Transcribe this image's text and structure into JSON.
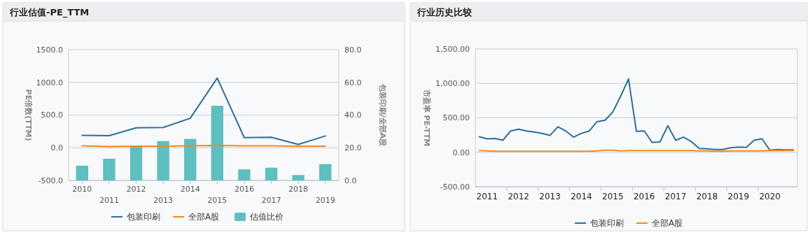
{
  "chart_data": [
    {
      "type": "line",
      "title": "行业估值-PE_TTM",
      "ylabel": "PE倍数(TTM)",
      "y2label": "包装印刷/全部A股",
      "categories": [
        "2010",
        "2011",
        "2012",
        "2013",
        "2014",
        "2015",
        "2016",
        "2017",
        "2018",
        "2019"
      ],
      "series": [
        {
          "name": "包装印刷",
          "color": "#2b6f9a",
          "values": [
            190,
            185,
            305,
            310,
            450,
            1065,
            155,
            160,
            50,
            180
          ]
        },
        {
          "name": "全部A股",
          "color": "#f58a1f",
          "values": [
            30,
            20,
            25,
            25,
            30,
            35,
            30,
            30,
            25,
            25
          ]
        },
        {
          "name": "估值比价",
          "type": "bar",
          "axis": "y2",
          "color": "#5dbfbf",
          "values": [
            9.0,
            13.3,
            21.0,
            24.1,
            25.4,
            45.7,
            6.8,
            7.8,
            3.3,
            10.0
          ]
        }
      ],
      "ylim": [
        -500,
        1500
      ],
      "yticks": [
        {
          "value": -500,
          "label": "-500.0"
        },
        {
          "value": 0,
          "label": "0.0"
        },
        {
          "value": 500,
          "label": "500.0"
        },
        {
          "value": 1000,
          "label": "1000.0"
        },
        {
          "value": 1500,
          "label": "1500.0"
        }
      ],
      "y2lim": [
        0,
        80
      ],
      "y2ticks": [
        {
          "value": 0,
          "label": "0.0"
        },
        {
          "value": 20,
          "label": "20.0"
        },
        {
          "value": 40,
          "label": "40.0"
        },
        {
          "value": 60,
          "label": "60.0"
        },
        {
          "value": 80,
          "label": "80.0"
        }
      ],
      "grid": "y",
      "legend": "bottom"
    },
    {
      "type": "line",
      "title": "行业历史比较",
      "ylabel": "市盈率 PE-TTM",
      "categories": [
        null,
        "2011",
        null,
        null,
        null,
        "2012",
        null,
        null,
        null,
        "2013",
        null,
        null,
        null,
        "2014",
        null,
        null,
        null,
        "2015",
        null,
        null,
        null,
        "2016",
        null,
        null,
        null,
        "2017",
        null,
        null,
        null,
        "2018",
        null,
        null,
        null,
        "2019",
        null,
        null,
        null,
        "2020",
        null,
        null,
        null
      ],
      "series": [
        {
          "name": "包装印刷",
          "color": "#2b6f9a",
          "values": [
            225,
            195,
            200,
            175,
            310,
            335,
            310,
            295,
            275,
            245,
            370,
            310,
            220,
            275,
            310,
            445,
            465,
            585,
            815,
            1065,
            305,
            310,
            145,
            150,
            385,
            175,
            220,
            155,
            55,
            50,
            40,
            40,
            65,
            75,
            70,
            175,
            195,
            30,
            40,
            35,
            35
          ]
        },
        {
          "name": "全部A股",
          "color": "#f58a1f",
          "values": [
            25,
            20,
            15,
            15,
            15,
            15,
            15,
            15,
            15,
            15,
            15,
            15,
            15,
            15,
            15,
            20,
            30,
            30,
            20,
            25,
            25,
            25,
            25,
            25,
            25,
            25,
            25,
            25,
            20,
            20,
            15,
            15,
            20,
            20,
            20,
            20,
            20,
            25,
            25,
            25,
            25
          ]
        }
      ],
      "ylim": [
        -500,
        1500
      ],
      "yticks": [
        {
          "value": -500,
          "label": "-500.00"
        },
        {
          "value": 0,
          "label": "0.00"
        },
        {
          "value": 500,
          "label": "500.00"
        },
        {
          "value": 1000,
          "label": "1,000.00"
        },
        {
          "value": 1500,
          "label": "1,500.00"
        }
      ],
      "grid": "y",
      "legend": "bottom"
    }
  ]
}
